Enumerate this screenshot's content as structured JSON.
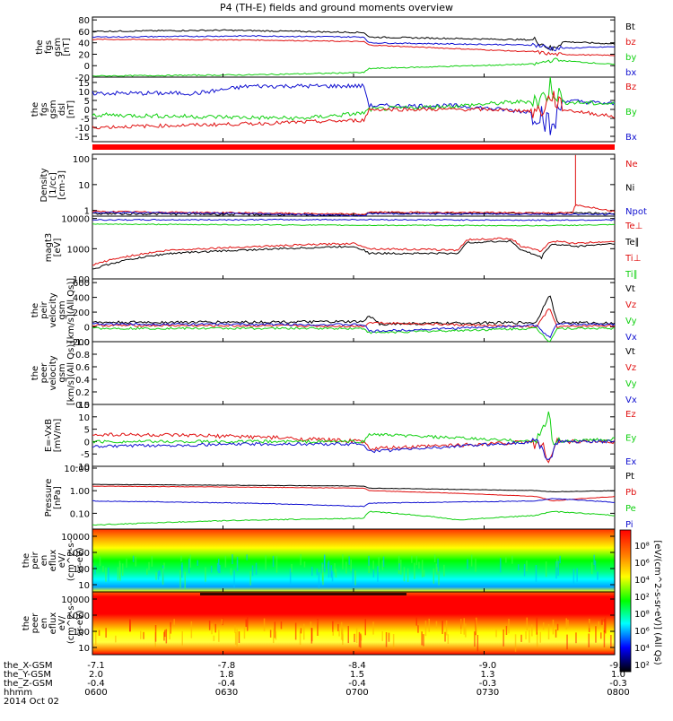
{
  "title": "P4 (TH-E) fields and ground moments overview",
  "colors": {
    "black": "#000000",
    "red": "#e01010",
    "green": "#10d010",
    "blue": "#1010d0"
  },
  "panels": [
    {
      "name": "fgs-gsm",
      "ylabel": [
        "the",
        "fgs",
        "gsm",
        "[nT]"
      ],
      "ylim": [
        -20,
        85
      ],
      "ticks": [
        "80",
        "60",
        "40",
        "20",
        "0",
        "-20"
      ],
      "tick_values": [
        80,
        60,
        40,
        20,
        0,
        -20
      ],
      "legend": [
        {
          "label": "Bt",
          "color": "#000000"
        },
        {
          "label": "bz",
          "color": "#e01010"
        },
        {
          "label": "by",
          "color": "#10d010"
        },
        {
          "label": "bx",
          "color": "#1010d0"
        }
      ]
    },
    {
      "name": "fgs-dsl",
      "ylabel": [
        "the",
        "fgs",
        "gsm",
        "dsl",
        "[nT]"
      ],
      "ylim": [
        -18,
        18
      ],
      "ticks": [
        "15",
        "10",
        "5",
        "0",
        "-5",
        "-10",
        "-15"
      ],
      "tick_values": [
        15,
        10,
        5,
        0,
        -5,
        -10,
        -15
      ],
      "legend": [
        {
          "label": "Bz",
          "color": "#e01010"
        },
        {
          "label": "By",
          "color": "#10d010"
        },
        {
          "label": "Bx",
          "color": "#1010d0"
        }
      ]
    },
    {
      "name": "density",
      "ylabel": [
        "Density",
        "[1/cc]",
        "[cm-3]"
      ],
      "ylim_log": [
        0.6,
        150
      ],
      "ticks": [
        "100",
        "10",
        "1"
      ],
      "tick_values": [
        100,
        10,
        1
      ],
      "legend": [
        {
          "label": "Ne",
          "color": "#e01010"
        },
        {
          "label": "Ni",
          "color": "#000000"
        },
        {
          "label": "Npot",
          "color": "#1010d0"
        }
      ]
    },
    {
      "name": "temperature",
      "ylabel": [
        "magt3",
        "[eV]"
      ],
      "ylim_log": [
        100,
        12000
      ],
      "ticks": [
        "10000",
        "1000",
        "100"
      ],
      "tick_values": [
        10000,
        1000,
        100
      ],
      "legend": [
        {
          "label": "Te⊥",
          "color": "#e01010"
        },
        {
          "label": "Te∥",
          "color": "#000000"
        },
        {
          "label": "Ti⊥",
          "color": "#e01010"
        },
        {
          "label": "Ti∥",
          "color": "#10d010"
        }
      ]
    },
    {
      "name": "peir-velocity",
      "ylabel": [
        "the",
        "peir",
        "velocity",
        "gsm",
        "[km/s](All Qs)]"
      ],
      "ylim": [
        -200,
        650
      ],
      "ticks": [
        "600",
        "400",
        "200",
        "0",
        "-200"
      ],
      "tick_values": [
        600,
        400,
        200,
        0,
        -200
      ],
      "legend": [
        {
          "label": "Vt",
          "color": "#000000"
        },
        {
          "label": "Vz",
          "color": "#e01010"
        },
        {
          "label": "Vy",
          "color": "#10d010"
        },
        {
          "label": "Vx",
          "color": "#1010d0"
        }
      ]
    },
    {
      "name": "peer-velocity",
      "ylabel": [
        "the",
        "peer",
        "velocity",
        "gsm",
        "[km/s](All Qs)]"
      ],
      "ylim": [
        0,
        1
      ],
      "ticks": [
        "1.0",
        "0.8",
        "0.6",
        "0.4",
        "0.2",
        "0.0"
      ],
      "tick_values": [
        1.0,
        0.8,
        0.6,
        0.4,
        0.2,
        0.0
      ],
      "legend": [
        {
          "label": "Vt",
          "color": "#000000"
        },
        {
          "label": "Vz",
          "color": "#e01010"
        },
        {
          "label": "Vy",
          "color": "#10d010"
        },
        {
          "label": "Vx",
          "color": "#1010d0"
        }
      ]
    },
    {
      "name": "efield",
      "ylabel": [
        "E=-VxB",
        "[mV/m]"
      ],
      "ylim": [
        -10,
        15
      ],
      "ticks": [
        "15",
        "10",
        "5",
        "0",
        "-5",
        "-10"
      ],
      "tick_values": [
        15,
        10,
        5,
        0,
        -5,
        -10
      ],
      "legend": [
        {
          "label": "Ez",
          "color": "#e01010"
        },
        {
          "label": "Ey",
          "color": "#10d010"
        },
        {
          "label": "Ex",
          "color": "#1010d0"
        }
      ]
    },
    {
      "name": "pressure",
      "ylabel": [
        "Pressure",
        "[nPa]"
      ],
      "ylim_log": [
        0.02,
        12
      ],
      "ticks": [
        "10.00",
        "1.00",
        "0.10",
        "0.01"
      ],
      "tick_values": [
        10,
        1,
        0.1,
        0.01
      ],
      "legend": [
        {
          "label": "Pt",
          "color": "#000000"
        },
        {
          "label": "Pb",
          "color": "#e01010"
        },
        {
          "label": "Pe",
          "color": "#10d010"
        },
        {
          "label": "Pi",
          "color": "#1010d0"
        }
      ]
    },
    {
      "name": "peir-eflux",
      "ylabel": [
        "the",
        "peir",
        "en",
        "eflux",
        "eV/",
        "(cm^2-s-",
        "sr-eV)"
      ],
      "ticks": [
        "10000",
        "1000",
        "100",
        "10"
      ],
      "legend": []
    },
    {
      "name": "peer-eflux",
      "ylabel": [
        "the",
        "peer",
        "en",
        "eflux",
        "eV/",
        "(cm^2-s-",
        "sr-eV)"
      ],
      "ticks": [
        "10000",
        "1000",
        "100",
        "10"
      ],
      "legend": []
    }
  ],
  "colorbar": {
    "label": "[eV/(cm^2-s-sr-eV)] (All Qs)",
    "ticks": [
      "10⁸",
      "10⁶",
      "10⁴",
      "10²",
      "10⁸",
      "10⁶",
      "10⁴",
      "10²"
    ]
  },
  "xaxis": {
    "rows": [
      {
        "label": "the_X-GSM",
        "values": [
          "-7.1",
          "-7.8",
          "-8.4",
          "-9.0",
          "-9.4"
        ]
      },
      {
        "label": "the_Y-GSM",
        "values": [
          "2.0",
          "1.8",
          "1.5",
          "1.3",
          "1.0"
        ]
      },
      {
        "label": "the_Z-GSM",
        "values": [
          "-0.4",
          "-0.4",
          "-0.4",
          "-0.3",
          "-0.3"
        ]
      },
      {
        "label": "hhmm",
        "values": [
          "0600",
          "0630",
          "0700",
          "0730",
          "0800"
        ]
      }
    ],
    "date": "2014 Oct 02"
  },
  "chart_data": {
    "type": "line",
    "title": "P4 (TH-E) fields and ground moments overview",
    "x": [
      "0600",
      "0630",
      "0700",
      "0730",
      "0800"
    ],
    "series": [
      {
        "name": "Bt",
        "values": [
          60,
          59,
          52,
          43,
          38
        ]
      },
      {
        "name": "bz",
        "values": [
          45,
          38,
          30,
          22,
          18
        ]
      },
      {
        "name": "by",
        "values": [
          -18,
          -15,
          -5,
          2,
          3
        ]
      },
      {
        "name": "bx",
        "values": [
          50,
          52,
          48,
          35,
          33
        ]
      }
    ]
  }
}
